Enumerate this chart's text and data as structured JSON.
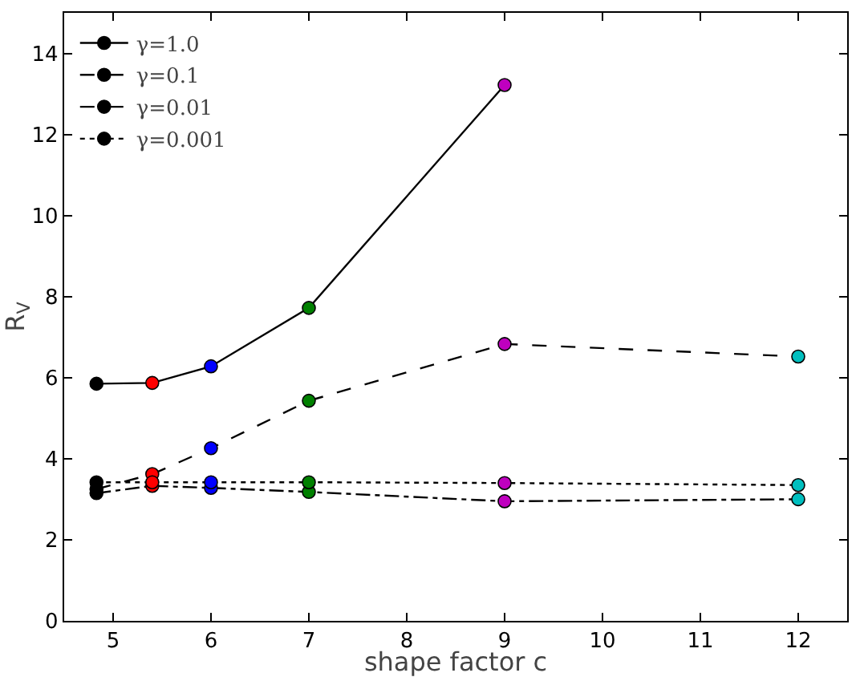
{
  "chart_data": {
    "type": "line",
    "xlabel": "shape factor c",
    "ylabel": "R$_{V}$",
    "x": [
      4.83,
      5.4,
      6,
      7,
      9,
      12
    ],
    "xlim": [
      4.5,
      12.5
    ],
    "xticks": [
      5,
      6,
      7,
      8,
      9,
      10,
      11,
      12
    ],
    "ylim": [
      0,
      15
    ],
    "yticks": [
      0,
      2,
      4,
      6,
      8,
      10,
      12,
      14
    ],
    "grid": false,
    "legend": "top left",
    "marker": "circle",
    "series": [
      {
        "name": "γ=1.0",
        "color": "#000000",
        "line_style": "solid",
        "values": [
          5.85,
          5.87,
          6.28,
          7.72,
          13.22,
          null
        ],
        "colors": [
          "#000000",
          "#ff0000",
          "#0000ff",
          "#008000",
          "#bf00bf",
          "#00bfbf"
        ]
      },
      {
        "name": "γ=0.1",
        "color": "#000000",
        "line_style": "dashed",
        "values": [
          3.25,
          3.62,
          4.26,
          5.43,
          6.83,
          6.52
        ],
        "colors": [
          "#000000",
          "#ff0000",
          "#0000ff",
          "#008000",
          "#bf00bf",
          "#00bfbf"
        ]
      },
      {
        "name": "γ=0.01",
        "color": "#000000",
        "line_style": "dashdot",
        "values": [
          3.15,
          3.33,
          3.28,
          3.18,
          2.95,
          3.0
        ],
        "colors": [
          "#000000",
          "#ff0000",
          "#0000ff",
          "#008000",
          "#bf00bf",
          "#00bfbf"
        ]
      },
      {
        "name": "γ=0.001",
        "color": "#000000",
        "line_style": "dotted",
        "values": [
          3.42,
          3.42,
          3.42,
          3.42,
          3.4,
          3.35
        ],
        "colors": [
          "#000000",
          "#ff0000",
          "#0000ff",
          "#008000",
          "#bf00bf",
          "#00bfbf"
        ]
      }
    ]
  }
}
